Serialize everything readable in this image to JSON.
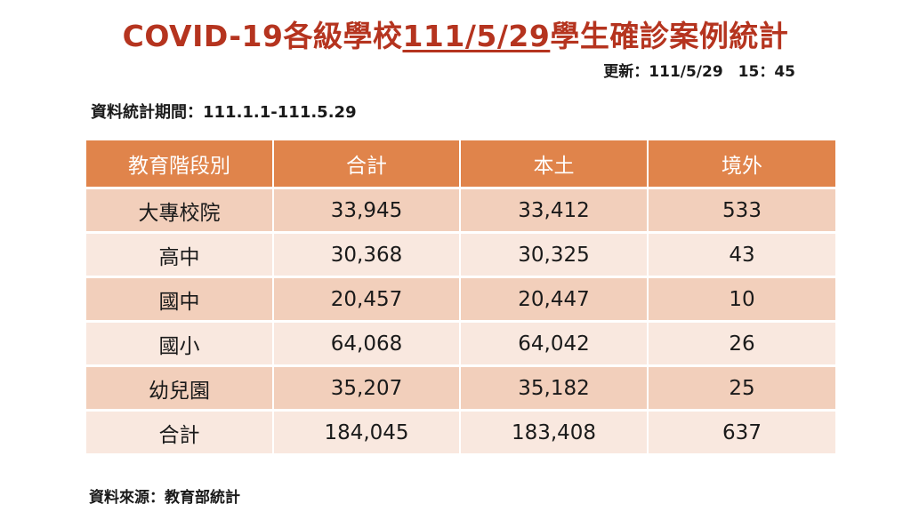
{
  "title": {
    "prefix": "COVID-19各級學校",
    "date": "111/5/29",
    "suffix": "學生確診案例統計"
  },
  "updated": "更新：111/5/29　15：45",
  "period": "資料統計期間：111.1.1-111.5.29",
  "source": "資料來源：教育部統計",
  "table": {
    "headers": [
      "教育階段別",
      "合計",
      "本土",
      "境外"
    ],
    "rows": [
      {
        "level": "大專校院",
        "total": "33,945",
        "local": "33,412",
        "imported": "533"
      },
      {
        "level": "高中",
        "total": "30,368",
        "local": "30,325",
        "imported": "43"
      },
      {
        "level": "國中",
        "total": "20,457",
        "local": "20,447",
        "imported": "10"
      },
      {
        "level": "國小",
        "total": "64,068",
        "local": "64,042",
        "imported": "26"
      },
      {
        "level": "幼兒園",
        "total": "35,207",
        "local": "35,182",
        "imported": "25"
      },
      {
        "level": "合計",
        "total": "184,045",
        "local": "183,408",
        "imported": "637"
      }
    ]
  },
  "colors": {
    "title": "#b5341f",
    "header_bg": "#e0844b",
    "row_dark": "#f2cfbb",
    "row_light": "#f9e8df"
  }
}
